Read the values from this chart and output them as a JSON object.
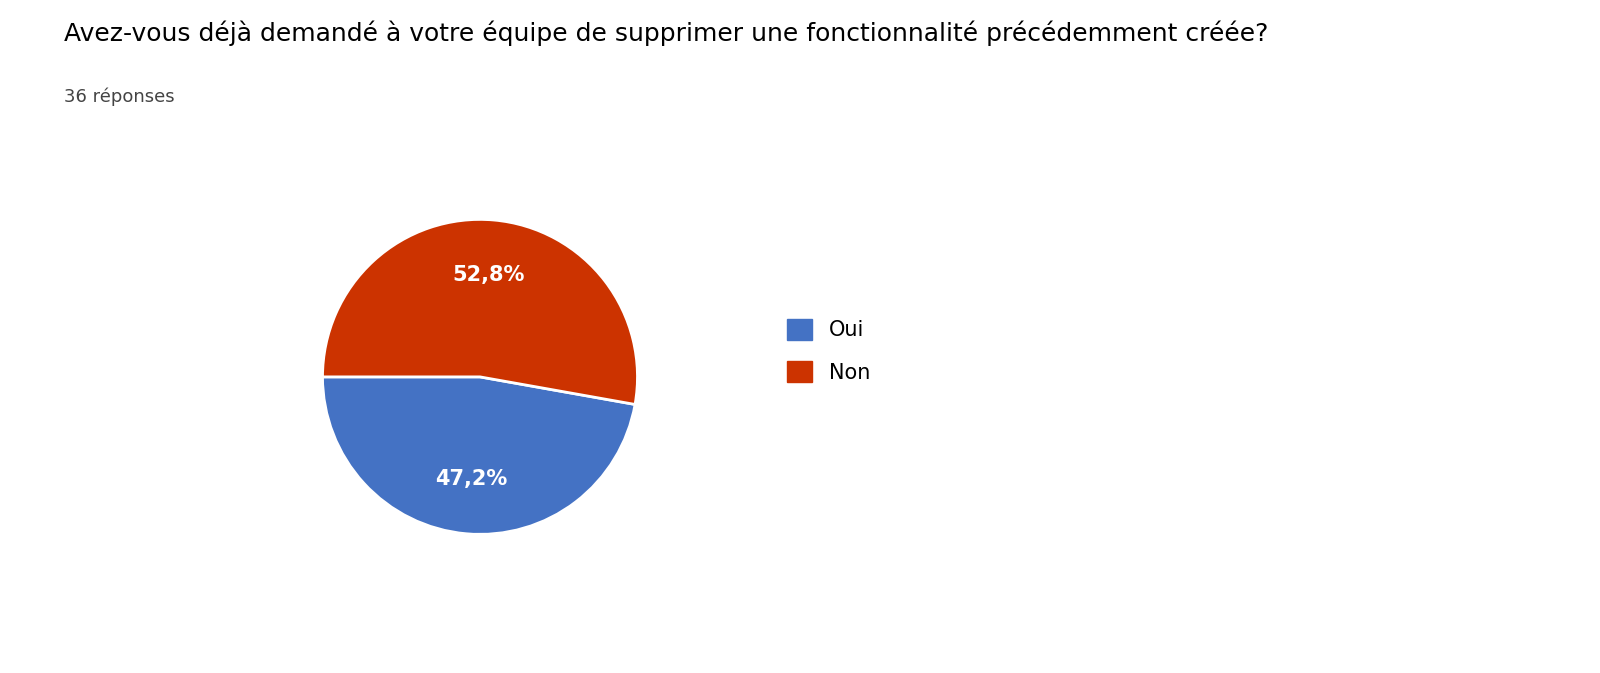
{
  "title": "Avez-vous déjà demandé à votre équipe de supprimer une fonctionnalité précédemment créée?",
  "subtitle": "36 réponses",
  "labels": [
    "Oui",
    "Non"
  ],
  "values": [
    47.2,
    52.8
  ],
  "colors": [
    "#4472C4",
    "#CC3300"
  ],
  "pct_labels": [
    "47,2%",
    "52,8%"
  ],
  "title_fontsize": 18,
  "subtitle_fontsize": 13,
  "legend_fontsize": 15,
  "autopct_fontsize": 15,
  "background_color": "#ffffff",
  "startangle": 180
}
